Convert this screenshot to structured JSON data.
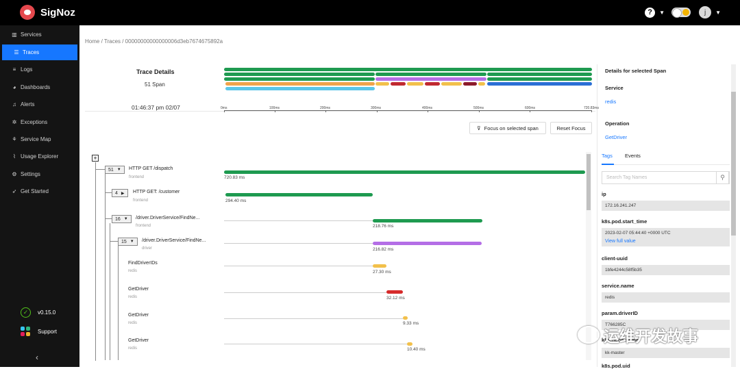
{
  "app": {
    "name": "SigNoz",
    "user_initial": "j"
  },
  "nav": {
    "items": [
      {
        "label": "Services",
        "icon": "bar-chart-icon"
      },
      {
        "label": "Traces",
        "icon": "menu-icon"
      },
      {
        "label": "Logs",
        "icon": "list-icon"
      },
      {
        "label": "Dashboards",
        "icon": "dashboard-icon"
      },
      {
        "label": "Alerts",
        "icon": "bell-icon"
      },
      {
        "label": "Exceptions",
        "icon": "bug-icon"
      },
      {
        "label": "Service Map",
        "icon": "deployment-icon"
      },
      {
        "label": "Usage Explorer",
        "icon": "line-chart-icon"
      },
      {
        "label": "Settings",
        "icon": "gear-icon"
      },
      {
        "label": "Get Started",
        "icon": "rocket-icon"
      }
    ],
    "version": "v0.15.0",
    "support": "Support",
    "collapse": "‹"
  },
  "breadcrumb": "Home  /  Traces  /  00000000000000006d3eb7674675892a",
  "trace": {
    "title": "Trace Details",
    "span_count": "51 Span",
    "timestamp": "01:46:37 pm 02/07",
    "ticks": [
      "0ms",
      "100ms",
      "200ms",
      "300ms",
      "400ms",
      "500ms",
      "600ms",
      "720.83ms"
    ]
  },
  "buttons": {
    "focus": "Focus on selected span",
    "reset": "Reset Focus"
  },
  "spans": [
    {
      "count": "51",
      "toggle": "▼",
      "op": "HTTP GET /dispatch",
      "svc": "frontend",
      "dur": "720.83 ms",
      "start": 0,
      "duration": 720.83,
      "color": "#1e9a50"
    },
    {
      "count": "4",
      "toggle": "▶",
      "op": "HTTP GET: /customer",
      "svc": "frontend",
      "dur": "294.40 ms",
      "start": 3,
      "duration": 294.4,
      "color": "#1e9a50"
    },
    {
      "count": "16",
      "toggle": "▼",
      "op": "/driver.DriverService/FindNe...",
      "svc": "frontend",
      "dur": "218.76 ms",
      "start": 296,
      "duration": 218.76,
      "color": "#1e9a50"
    },
    {
      "count": "15",
      "toggle": "▼",
      "op": "/driver.DriverService/FindNe...",
      "svc": "driver",
      "dur": "216.82 ms",
      "start": 296,
      "duration": 216.82,
      "color": "#b46ee6"
    },
    {
      "count": "",
      "toggle": "",
      "op": "FindDriverIDs",
      "svc": "redis",
      "dur": "27.30 ms",
      "start": 296,
      "duration": 27.3,
      "color": "#f2c04b"
    },
    {
      "count": "",
      "toggle": "",
      "op": "GetDriver",
      "svc": "redis",
      "dur": "32.12 ms",
      "start": 323,
      "duration": 32.12,
      "color": "#d62a2a"
    },
    {
      "count": "",
      "toggle": "",
      "op": "GetDriver",
      "svc": "redis",
      "dur": "9.33 ms",
      "start": 355,
      "duration": 9.33,
      "color": "#f2c04b"
    },
    {
      "count": "",
      "toggle": "",
      "op": "GetDriver",
      "svc": "redis",
      "dur": "10.40 ms",
      "start": 364,
      "duration": 10.4,
      "color": "#f2c04b"
    }
  ],
  "details": {
    "title": "Details for selected Span",
    "service_label": "Service",
    "service_value": "redis",
    "operation_label": "Operation",
    "operation_value": "GetDriver",
    "tabs": [
      "Tags",
      "Events"
    ],
    "search_placeholder": "Search Tag Names",
    "tags": [
      {
        "key": "ip",
        "value": "172.16.241.247"
      },
      {
        "key": "k8s.pod.start_time",
        "value": "2023-02-07 05:44:40 +0000 UTC",
        "link": "View full value"
      },
      {
        "key": "client-uuid",
        "value": "1bfe4244c58f5b35"
      },
      {
        "key": "service.name",
        "value": "redis"
      },
      {
        "key": "param.driverID",
        "value": "T766285C"
      },
      {
        "key": "k8s.node.name",
        "value": "kk-master"
      },
      {
        "key": "k8s.pod.uid",
        "value": ""
      }
    ]
  },
  "watermark": "运维开发故事",
  "colors": {
    "primary": "#1677ff",
    "green": "#1e9a50",
    "purple": "#b46ee6",
    "yellow": "#f2c04b",
    "red": "#d62a2a"
  }
}
